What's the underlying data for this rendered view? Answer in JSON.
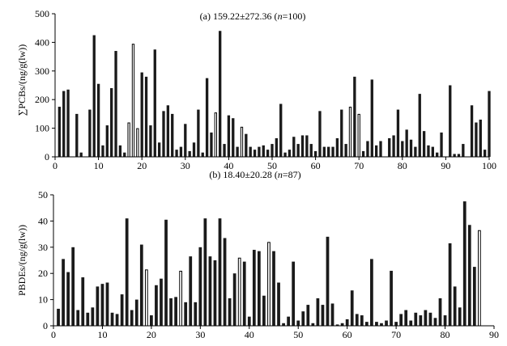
{
  "chart_data": [
    {
      "type": "bar",
      "title_prefix": "(a) 159.22±272.36 (",
      "title_n": "n",
      "title_suffix": "=100)",
      "ylabel": "∑PCBs/(ng/g(lw))",
      "xlim": [
        0,
        100
      ],
      "ylim": [
        0,
        500
      ],
      "xticks": [
        0,
        10,
        20,
        30,
        40,
        50,
        60,
        70,
        80,
        90,
        100
      ],
      "yticks": [
        0,
        100,
        200,
        300,
        400,
        500
      ],
      "x": [
        1,
        2,
        3,
        4,
        5,
        6,
        7,
        8,
        9,
        10,
        11,
        12,
        13,
        14,
        15,
        16,
        17,
        18,
        19,
        20,
        21,
        22,
        23,
        24,
        25,
        26,
        27,
        28,
        29,
        30,
        31,
        32,
        33,
        34,
        35,
        36,
        37,
        38,
        39,
        40,
        41,
        42,
        43,
        44,
        45,
        46,
        47,
        48,
        49,
        50,
        51,
        52,
        53,
        54,
        55,
        56,
        57,
        58,
        59,
        60,
        61,
        62,
        63,
        64,
        65,
        66,
        67,
        68,
        69,
        70,
        71,
        72,
        73,
        74,
        75,
        76,
        77,
        78,
        79,
        80,
        81,
        82,
        83,
        84,
        85,
        86,
        87,
        88,
        89,
        90,
        91,
        92,
        93,
        94,
        95,
        96,
        97,
        98,
        99,
        100
      ],
      "values": [
        175,
        230,
        235,
        0,
        150,
        15,
        0,
        165,
        425,
        255,
        40,
        110,
        240,
        370,
        40,
        15,
        120,
        395,
        100,
        295,
        280,
        110,
        375,
        50,
        160,
        180,
        150,
        25,
        35,
        115,
        20,
        50,
        165,
        15,
        275,
        85,
        155,
        440,
        45,
        145,
        135,
        35,
        105,
        80,
        35,
        25,
        35,
        40,
        25,
        45,
        65,
        185,
        15,
        25,
        70,
        45,
        75,
        75,
        45,
        20,
        160,
        35,
        35,
        35,
        65,
        165,
        45,
        175,
        280,
        150,
        20,
        55,
        270,
        40,
        55,
        0,
        65,
        75,
        165,
        55,
        95,
        60,
        35,
        220,
        90,
        40,
        35,
        15,
        85,
        0,
        250,
        10,
        10,
        45,
        0,
        180,
        120,
        130,
        25,
        230
      ],
      "hollow": [
        0,
        0,
        0,
        0,
        0,
        0,
        0,
        0,
        0,
        0,
        0,
        0,
        0,
        0,
        0,
        0,
        1,
        1,
        1,
        0,
        0,
        0,
        0,
        0,
        0,
        0,
        0,
        0,
        0,
        0,
        0,
        0,
        0,
        0,
        0,
        0,
        1,
        0,
        0,
        0,
        0,
        0,
        1,
        0,
        0,
        0,
        0,
        0,
        0,
        0,
        0,
        0,
        0,
        0,
        0,
        0,
        0,
        0,
        0,
        0,
        0,
        0,
        0,
        0,
        0,
        0,
        0,
        1,
        0,
        1,
        0,
        0,
        0,
        0,
        0,
        0,
        0,
        0,
        0,
        0,
        0,
        0,
        0,
        0,
        0,
        0,
        0,
        0,
        0,
        0,
        0,
        0,
        0,
        0,
        0,
        0,
        0,
        0,
        0,
        0
      ]
    },
    {
      "type": "bar",
      "title_prefix": "(b) 18.40±20.28 (",
      "title_n": "n",
      "title_suffix": "=87)",
      "ylabel": "PBDEs/(ng/g(lw))",
      "xlim": [
        0,
        90
      ],
      "ylim": [
        0,
        50
      ],
      "xticks": [
        0,
        10,
        20,
        30,
        40,
        50,
        60,
        70,
        80,
        90
      ],
      "yticks": [
        0,
        10,
        20,
        30,
        40,
        50
      ],
      "x": [
        1,
        2,
        3,
        4,
        5,
        6,
        7,
        8,
        9,
        10,
        11,
        12,
        13,
        14,
        15,
        16,
        17,
        18,
        19,
        20,
        21,
        22,
        23,
        24,
        25,
        26,
        27,
        28,
        29,
        30,
        31,
        32,
        33,
        34,
        35,
        36,
        37,
        38,
        39,
        40,
        41,
        42,
        43,
        44,
        45,
        46,
        47,
        48,
        49,
        50,
        51,
        52,
        53,
        54,
        55,
        56,
        57,
        58,
        59,
        60,
        61,
        62,
        63,
        64,
        65,
        66,
        67,
        68,
        69,
        70,
        71,
        72,
        73,
        74,
        75,
        76,
        77,
        78,
        79,
        80,
        81,
        82,
        83,
        84,
        85,
        86,
        87
      ],
      "values": [
        6.5,
        25.5,
        20.5,
        30,
        6,
        18.5,
        5,
        7,
        15,
        16,
        16.5,
        5,
        4.5,
        12,
        41,
        6,
        10,
        31,
        21.5,
        4,
        15.5,
        18,
        40.5,
        10.5,
        11,
        21,
        9,
        26.5,
        9,
        30,
        41,
        26.5,
        25,
        41,
        33.5,
        10.5,
        20,
        26,
        24.5,
        3.5,
        29,
        28.5,
        11.5,
        32,
        28.5,
        16.5,
        1,
        3.5,
        24.5,
        2,
        5.5,
        8,
        1,
        10.5,
        8,
        34,
        8.5,
        0.5,
        1,
        2.5,
        13.5,
        4.5,
        4,
        1.5,
        25.5,
        1.5,
        1,
        2,
        21,
        1.5,
        4.5,
        6,
        2,
        5,
        4,
        6,
        5,
        3,
        10.5,
        4,
        31.5,
        15,
        7,
        47.5,
        38.5,
        22.5,
        36.5
      ],
      "hollow": [
        0,
        0,
        0,
        0,
        0,
        0,
        0,
        0,
        0,
        0,
        0,
        0,
        0,
        0,
        0,
        0,
        0,
        0,
        1,
        0,
        0,
        0,
        0,
        0,
        0,
        1,
        0,
        0,
        0,
        0,
        0,
        0,
        0,
        0,
        0,
        0,
        0,
        1,
        0,
        0,
        0,
        0,
        0,
        1,
        0,
        0,
        0,
        0,
        0,
        0,
        0,
        0,
        0,
        0,
        0,
        0,
        0,
        0,
        0,
        0,
        0,
        0,
        0,
        0,
        0,
        0,
        0,
        0,
        0,
        0,
        0,
        0,
        0,
        0,
        0,
        0,
        0,
        0,
        0,
        0,
        0,
        0,
        0,
        0,
        0,
        0,
        1
      ]
    }
  ]
}
